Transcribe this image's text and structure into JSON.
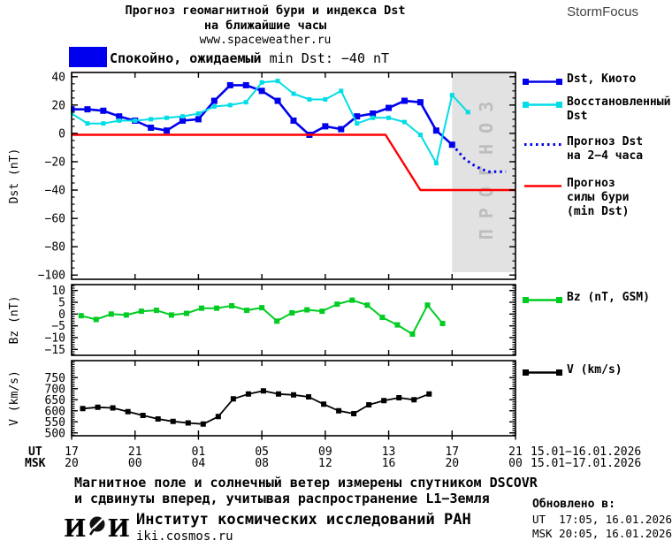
{
  "header": {
    "title_line1": "Прогноз геомагнитной бури и индекса Dst",
    "title_line2": "на ближайшие часы",
    "title_line3": "www.spaceweather.ru",
    "brand": "StormFocus"
  },
  "status": {
    "text_ru": "Спокойно, ожидаемый ",
    "text_en": "min Dst: −40 nT",
    "box_color": "#0000ee"
  },
  "xaxis": {
    "xlim": [
      0,
      28
    ],
    "tick_hours": [
      0,
      4,
      8,
      12,
      16,
      20,
      24,
      28
    ],
    "ut_prefix": "UT",
    "msk_prefix": "MSK",
    "ut_labels": [
      "17",
      "21",
      "01",
      "05",
      "09",
      "13",
      "17",
      "21"
    ],
    "msk_labels": [
      "20",
      "00",
      "04",
      "08",
      "12",
      "16",
      "20",
      "00"
    ],
    "ut_daterange": "15.01−16.01.2026",
    "msk_daterange": "15.01−17.01.2026"
  },
  "chart_data": [
    {
      "type": "line",
      "ylabel": "Dst (nT)",
      "ylim": [
        -103,
        43
      ],
      "yticks": [
        40,
        20,
        0,
        -20,
        -40,
        -60,
        -80,
        -100
      ],
      "ytick_labels": [
        "40",
        "20",
        "0",
        "−20",
        "−40",
        "−60",
        "−80",
        "−100"
      ],
      "ytick_minor": 5,
      "forecast_band": {
        "x_start": 24,
        "x_end": 28,
        "label": "ПРОГНОЗ",
        "fill": "#e2e2e2",
        "text_color": "#bdbdbd"
      },
      "series": [
        {
          "name": "Dst, Киото",
          "color": "#0000ee",
          "width": 2.6,
          "marker": 7,
          "x_start": 0,
          "x_step": 1,
          "values": [
            17,
            17,
            16,
            12,
            9,
            4,
            2,
            9,
            10,
            23,
            34,
            34,
            30,
            23,
            9,
            -1,
            5,
            3,
            12,
            14,
            18,
            23,
            22,
            2,
            -8
          ]
        },
        {
          "name": "Восстановленный Dst",
          "color": "#00dde6",
          "width": 2,
          "marker": 5,
          "x_start": 0,
          "x_step": 1,
          "values": [
            14,
            7,
            7,
            9,
            9,
            10,
            11,
            12,
            14,
            19,
            20,
            22,
            36,
            37,
            28,
            24,
            24,
            30,
            7,
            11,
            11,
            8,
            -1,
            -21,
            27,
            15
          ]
        },
        {
          "name": "Прогноз Dst на 2−4 часа",
          "color": "#0000ee",
          "width": 3,
          "style": "dotted",
          "points": [
            [
              24,
              -8
            ],
            [
              24.4,
              -13
            ],
            [
              24.8,
              -18
            ],
            [
              25.3,
              -22
            ],
            [
              25.8,
              -25
            ],
            [
              26.3,
              -27
            ],
            [
              27.4,
              -27
            ]
          ]
        },
        {
          "name": "Прогноз силы бури (min Dst)",
          "color": "#ff0000",
          "width": 2.4,
          "points": [
            [
              0,
              -1
            ],
            [
              19.8,
              -1
            ],
            [
              22,
              -40
            ],
            [
              28,
              -40
            ]
          ]
        }
      ]
    },
    {
      "type": "line",
      "ylabel": "Bz (nT)",
      "ylim": [
        -17.5,
        12.5
      ],
      "yticks": [
        10,
        5,
        0,
        -5,
        -10,
        -15
      ],
      "ytick_labels": [
        "10",
        "5",
        "0",
        "−5",
        "−10",
        "−15"
      ],
      "ytick_minor": 1,
      "series": [
        {
          "name": "Bz (nT, GSM)",
          "color": "#00cc22",
          "width": 2,
          "marker": 6,
          "x_start": 0.6,
          "x_step": 0.95,
          "values": [
            -0.7,
            -2.3,
            0,
            -0.4,
            1.2,
            1.6,
            -0.4,
            0.3,
            2.5,
            2.5,
            3.5,
            1.6,
            2.7,
            -3,
            0.5,
            1.8,
            1.2,
            4.2,
            5.9,
            3.8,
            -1.4,
            -4.6,
            -8.5,
            3.8,
            -4
          ]
        }
      ]
    },
    {
      "type": "line",
      "ylabel": "V (km/s)",
      "ylim": [
        487,
        827
      ],
      "yticks": [
        750,
        700,
        650,
        600,
        550,
        500
      ],
      "ytick_labels": [
        "750",
        "700",
        "650",
        "600",
        "550",
        "500"
      ],
      "ytick_minor": 10,
      "series": [
        {
          "name": "V (km/s)",
          "color": "#000000",
          "width": 1.8,
          "marker": 6,
          "x_start": 0.7,
          "x_step": 0.95,
          "values": [
            610,
            616,
            613,
            596,
            579,
            563,
            552,
            545,
            540,
            574,
            654,
            676,
            690,
            676,
            672,
            663,
            630,
            600,
            587,
            627,
            646,
            659,
            650,
            676
          ]
        }
      ]
    }
  ],
  "legend": {
    "items": [
      {
        "label": "Dst, Киото",
        "color": "#0000ee",
        "swatch": "square-line"
      },
      {
        "label": "Восстановленный\nDst",
        "color": "#00dde6",
        "swatch": "square-line"
      },
      {
        "label": "Прогноз Dst\nна 2−4 часа",
        "color": "#0000ee",
        "swatch": "dotted"
      },
      {
        "label": "Прогноз\nсилы бури\n(min Dst)",
        "color": "#ff0000",
        "swatch": "line"
      },
      {
        "label": "Bz (nT, GSM)",
        "color": "#00cc22",
        "swatch": "square-line"
      },
      {
        "label": "V (km/s)",
        "color": "#000000",
        "swatch": "square-line"
      }
    ]
  },
  "footer": {
    "note_line1": "Магнитное поле и солнечный ветер измерены спутником DSCOVR",
    "note_line2": "и сдвинуты вперед, учитывая распространение L1−Земля",
    "logo_left": "И",
    "logo_right": "И",
    "institute": "Институт космических исследований РАН",
    "website": "iki.cosmos.ru",
    "updated_label": "Обновлено в:",
    "updated_ut": "UT  17:05, 16.01.2026",
    "updated_msk": "MSK 20:05, 16.01.2026"
  }
}
